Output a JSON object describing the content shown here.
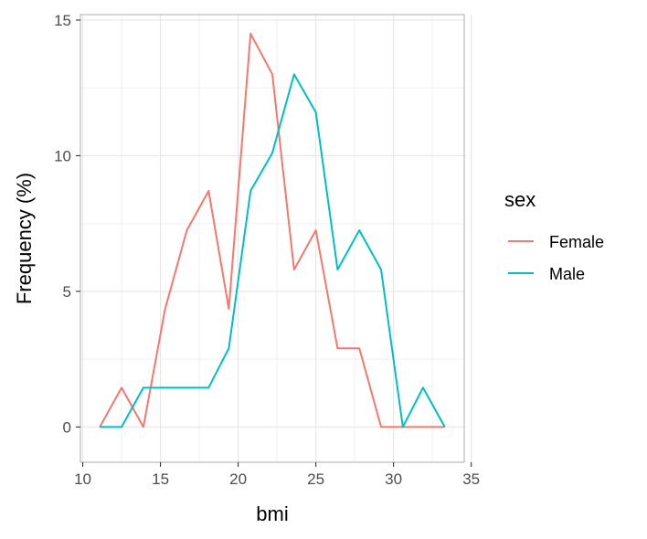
{
  "chart_data": {
    "type": "line",
    "xlabel": "bmi",
    "ylabel": "Frequency (%)",
    "xlim": [
      9.85,
      34.55
    ],
    "ylim": [
      -1.3,
      15.2
    ],
    "xticks": [
      10,
      15,
      20,
      25,
      30,
      35
    ],
    "yticks": [
      0,
      5,
      10,
      15
    ],
    "grid": true,
    "legend": {
      "title": "sex",
      "placement": "right"
    },
    "series": [
      {
        "name": "Female",
        "color": "#F8766D",
        "x": [
          11.1,
          12.5,
          13.9,
          15.3,
          16.7,
          18.1,
          19.4,
          20.8,
          22.2,
          23.6,
          25.0,
          26.4,
          27.8,
          29.2,
          30.6,
          31.9,
          33.3
        ],
        "y": [
          0,
          1.45,
          0,
          4.35,
          7.25,
          8.7,
          4.35,
          14.5,
          13.0,
          5.8,
          7.25,
          2.9,
          2.9,
          0,
          0,
          0,
          0
        ]
      },
      {
        "name": "Male",
        "color": "#00BFC4",
        "x": [
          11.1,
          12.5,
          13.9,
          15.3,
          16.7,
          18.1,
          19.4,
          20.8,
          22.2,
          23.6,
          25.0,
          26.4,
          27.8,
          29.2,
          30.6,
          31.9,
          33.3
        ],
        "y": [
          0,
          0,
          1.45,
          1.45,
          1.45,
          1.45,
          2.9,
          8.7,
          10.1,
          13.0,
          11.6,
          5.8,
          7.25,
          5.8,
          0,
          1.45,
          0
        ]
      }
    ]
  }
}
